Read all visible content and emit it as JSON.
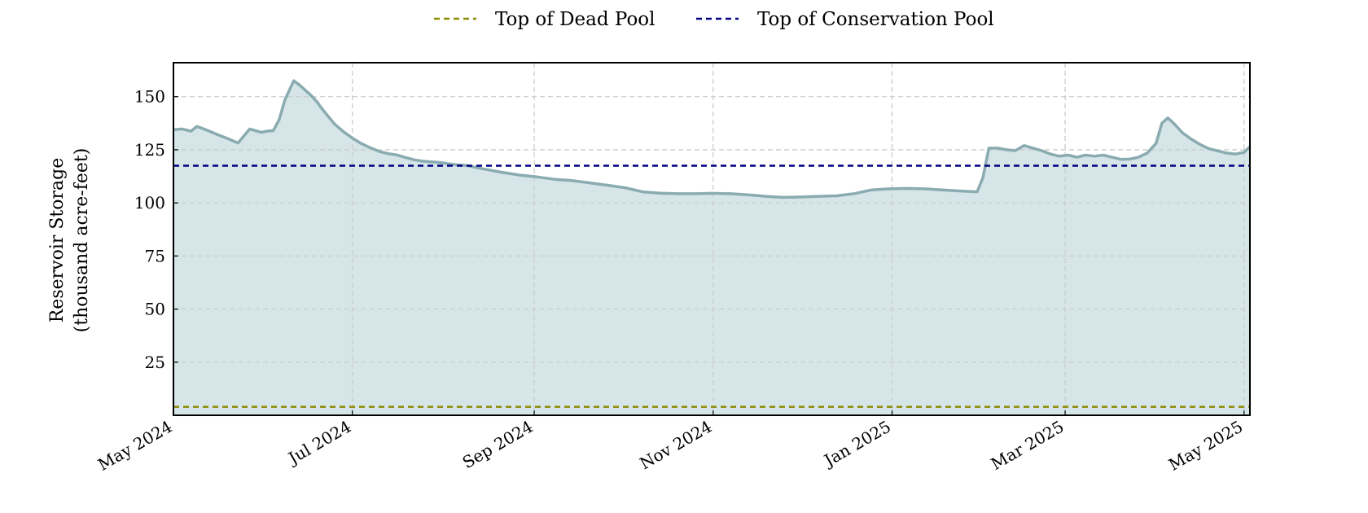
{
  "chart_data": {
    "type": "area",
    "title": "",
    "xlabel": "",
    "ylabel": [
      "Reservoir Storage",
      "(thousand acre-feet)"
    ],
    "x_range": [
      "2024-05-01",
      "2025-05-03"
    ],
    "ylim": [
      0,
      166
    ],
    "yticks": [
      25,
      50,
      75,
      100,
      125,
      150
    ],
    "xticks": [
      {
        "date": "2024-05-01",
        "label": "May 2024"
      },
      {
        "date": "2024-07-01",
        "label": "Jul 2024"
      },
      {
        "date": "2024-09-01",
        "label": "Sep 2024"
      },
      {
        "date": "2024-11-01",
        "label": "Nov 2024"
      },
      {
        "date": "2025-01-01",
        "label": "Jan 2025"
      },
      {
        "date": "2025-03-01",
        "label": "Mar 2025"
      },
      {
        "date": "2025-05-01",
        "label": "May 2025"
      }
    ],
    "grid": true,
    "legend_position": "top-center",
    "reference_lines": [
      {
        "name": "Top of Dead Pool",
        "value": 4,
        "color": "#8b8b00",
        "fill": "#ebe5cc"
      },
      {
        "name": "Top of Conservation Pool",
        "value": 117.5,
        "color": "#000080"
      }
    ],
    "series": [
      {
        "color": "#8aabb0",
        "fill": "#d6e6e8",
        "x": [
          "2024-05-01",
          "2024-05-04",
          "2024-05-07",
          "2024-05-09",
          "2024-05-12",
          "2024-05-16",
          "2024-05-20",
          "2024-05-23",
          "2024-05-27",
          "2024-05-31",
          "2024-06-02",
          "2024-06-04",
          "2024-06-06",
          "2024-06-08",
          "2024-06-11",
          "2024-06-13",
          "2024-06-15",
          "2024-06-17",
          "2024-06-19",
          "2024-06-20",
          "2024-06-22",
          "2024-06-25",
          "2024-06-28",
          "2024-07-01",
          "2024-07-04",
          "2024-07-07",
          "2024-07-10",
          "2024-07-13",
          "2024-07-16",
          "2024-07-19",
          "2024-07-22",
          "2024-07-25",
          "2024-07-28",
          "2024-07-31",
          "2024-08-03",
          "2024-08-06",
          "2024-08-09",
          "2024-08-15",
          "2024-08-21",
          "2024-08-27",
          "2024-09-02",
          "2024-09-08",
          "2024-09-14",
          "2024-09-20",
          "2024-09-26",
          "2024-10-02",
          "2024-10-08",
          "2024-10-14",
          "2024-10-20",
          "2024-10-26",
          "2024-11-01",
          "2024-11-07",
          "2024-11-13",
          "2024-11-19",
          "2024-11-25",
          "2024-12-01",
          "2024-12-07",
          "2024-12-13",
          "2024-12-19",
          "2024-12-25",
          "2024-12-31",
          "2025-01-06",
          "2025-01-12",
          "2025-01-18",
          "2025-01-24",
          "2025-01-30",
          "2025-02-01",
          "2025-02-03",
          "2025-02-06",
          "2025-02-09",
          "2025-02-12",
          "2025-02-15",
          "2025-02-18",
          "2025-02-21",
          "2025-02-24",
          "2025-02-27",
          "2025-03-02",
          "2025-03-05",
          "2025-03-08",
          "2025-03-11",
          "2025-03-14",
          "2025-03-17",
          "2025-03-20",
          "2025-03-23",
          "2025-03-26",
          "2025-03-29",
          "2025-04-01",
          "2025-04-03",
          "2025-04-05",
          "2025-04-07",
          "2025-04-10",
          "2025-04-13",
          "2025-04-16",
          "2025-04-19",
          "2025-04-22",
          "2025-04-25",
          "2025-04-28",
          "2025-05-01",
          "2025-05-03"
        ],
        "values": [
          134.5,
          134.8,
          133.8,
          136,
          134.5,
          132.2,
          130,
          128.2,
          134.8,
          133.2,
          133.8,
          134,
          139,
          148.5,
          157.5,
          155.5,
          153,
          150.5,
          147.5,
          145.5,
          142,
          137,
          133.5,
          130.5,
          128,
          126,
          124.3,
          123.2,
          122.6,
          121.4,
          120.3,
          119.6,
          119.3,
          119,
          118.4,
          117.9,
          117.6,
          115.9,
          114.4,
          113.1,
          112.2,
          111.1,
          110.5,
          109.4,
          108.3,
          107.1,
          105.2,
          104.6,
          104.3,
          104.3,
          104.5,
          104.3,
          103.8,
          103.1,
          102.6,
          102.8,
          103.1,
          103.3,
          104.3,
          106.1,
          106.6,
          106.8,
          106.6,
          106.1,
          105.6,
          105.2,
          112,
          125.8,
          125.8,
          125.0,
          124.6,
          127.0,
          125.8,
          124.6,
          123.0,
          122.0,
          122.5,
          121.5,
          122.5,
          122.0,
          122.5,
          121.5,
          120.5,
          120.6,
          121.5,
          123.5,
          128.0,
          137.5,
          140.0,
          137.5,
          133.0,
          130.0,
          127.5,
          125.5,
          124.5,
          123.5,
          123.0,
          123.8,
          126.5
        ]
      }
    ]
  }
}
